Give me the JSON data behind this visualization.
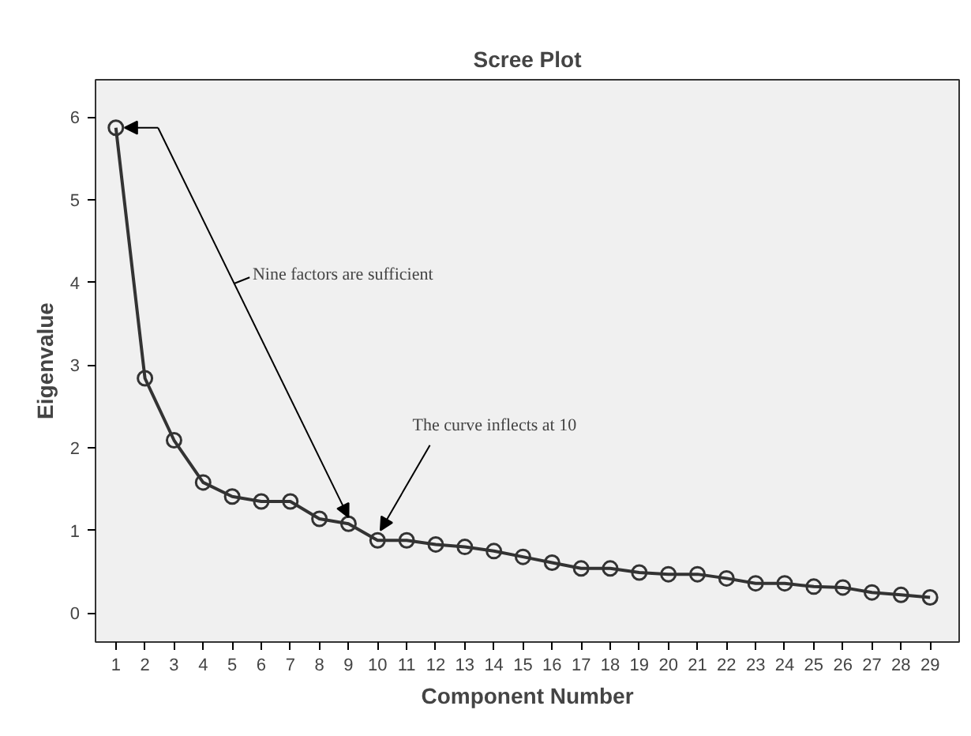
{
  "chart_data": {
    "type": "line",
    "title": "Scree Plot",
    "xlabel": "Component Number",
    "ylabel": "Eigenvalue",
    "x": [
      1,
      2,
      3,
      4,
      5,
      6,
      7,
      8,
      9,
      10,
      11,
      12,
      13,
      14,
      15,
      16,
      17,
      18,
      19,
      20,
      21,
      22,
      23,
      24,
      25,
      26,
      27,
      28,
      29
    ],
    "series": [
      {
        "color": "#333333",
        "values": [
          5.87,
          2.84,
          2.09,
          1.58,
          1.41,
          1.35,
          1.35,
          1.14,
          1.08,
          0.88,
          0.88,
          0.83,
          0.8,
          0.75,
          0.68,
          0.61,
          0.54,
          0.54,
          0.49,
          0.47,
          0.47,
          0.42,
          0.36,
          0.36,
          0.32,
          0.31,
          0.25,
          0.22,
          0.19
        ]
      }
    ],
    "xlim": [
      0.3,
      30
    ],
    "ylim": [
      -0.35,
      6.45
    ],
    "xticks": [
      1,
      2,
      3,
      4,
      5,
      6,
      7,
      8,
      9,
      10,
      11,
      12,
      13,
      14,
      15,
      16,
      17,
      18,
      19,
      20,
      21,
      22,
      23,
      24,
      25,
      26,
      27,
      28,
      29
    ],
    "yticks": [
      0,
      1,
      2,
      3,
      4,
      5,
      6
    ],
    "annotations": [
      "Nine factors are sufficient",
      {
        "text": "The curve inflects at 10",
        "x": 10,
        "y": 0.88
      }
    ],
    "marker": "circle",
    "grid": false
  }
}
